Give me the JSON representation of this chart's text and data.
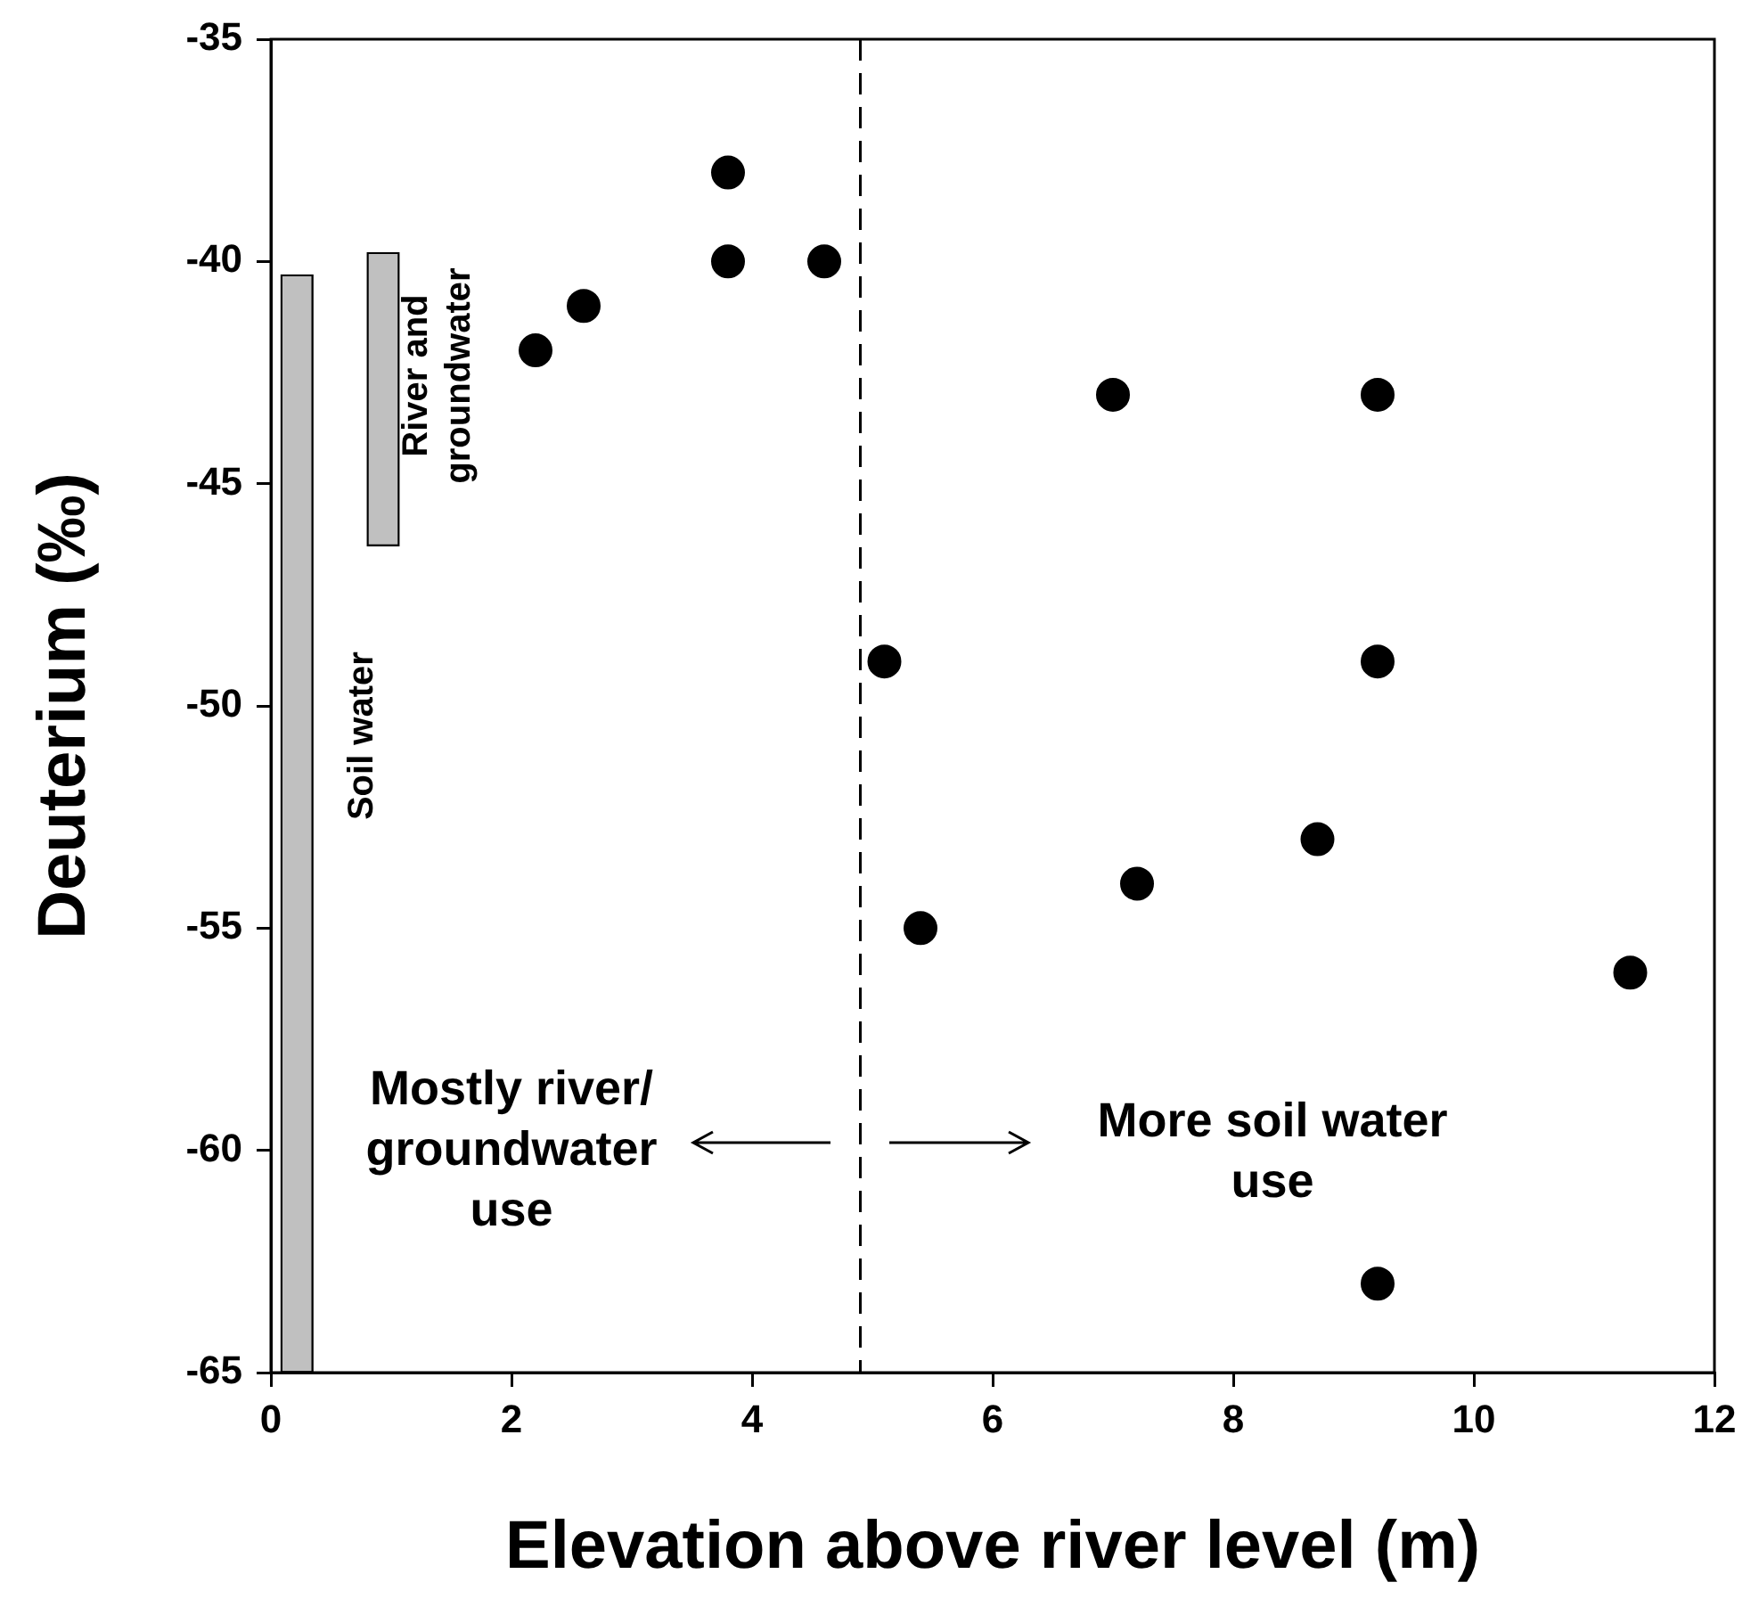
{
  "chart_data": {
    "type": "scatter",
    "xlabel": "Elevation above river level (m)",
    "ylabel": "Deuterium (‰)",
    "xlim": [
      0,
      12
    ],
    "xticks": [
      0,
      2,
      4,
      6,
      8,
      10,
      12
    ],
    "ylim": [
      -65,
      -35
    ],
    "yticks": [
      -65,
      -60,
      -55,
      -50,
      -45,
      -40,
      -35
    ],
    "grid": false,
    "legend": false,
    "marker": "circle",
    "series": [
      {
        "color": "#000000",
        "x": [
          2.2,
          2.6,
          3.8,
          3.8,
          4.6,
          5.1,
          5.4,
          7.0,
          7.2,
          8.7,
          9.2,
          9.2,
          9.2,
          11.3
        ],
        "values": [
          -42,
          -41,
          -38,
          -40,
          -40,
          -49,
          -55,
          -43,
          -54,
          -53,
          -43,
          -49,
          -63,
          -56
        ]
      },
      {
        "type": "bar",
        "name": "Soil water",
        "color": "#c0c0c0",
        "x": [
          0.35
        ],
        "base": [
          -65
        ],
        "values": [
          24.7
        ]
      },
      {
        "type": "bar",
        "name": "River and groundwater",
        "color": "#c0c0c0",
        "x": [
          0.8
        ],
        "base": [
          -46.4
        ],
        "values": [
          6.6
        ]
      }
    ],
    "ref_lines": [
      {
        "axis": "x",
        "value": 4.9,
        "color": "#000000",
        "line_style": "dashed"
      }
    ],
    "annotations": [
      "Mostly river/ groundwater use",
      "More soil water use"
    ]
  }
}
